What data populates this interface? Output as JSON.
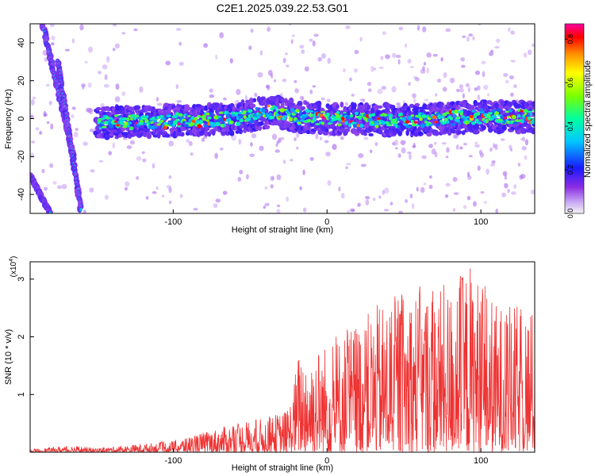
{
  "title": "C2E1.2025.039.22.53.G01",
  "chart_data": [
    {
      "type": "heatmap",
      "name": "spectrogram",
      "xlabel": "Height of straight line (km)",
      "ylabel": "Frequency (Hz)",
      "xlim": [
        -193,
        135
      ],
      "ylim": [
        -50,
        50
      ],
      "xticks": [
        -100,
        0,
        100
      ],
      "xtick_labels": [
        "-100",
        "0",
        "100"
      ],
      "yticks": [
        -40,
        -20,
        0,
        20,
        40
      ],
      "ytick_labels": [
        "-40",
        "-20",
        "0",
        "20",
        "40"
      ],
      "description_of_ridge": "band of high amplitude centred near 0 Hz from about -140 km to 135 km; two diagonal streaks at left",
      "ridge_center_hz": [
        {
          "x": -140,
          "y": -2
        },
        {
          "x": -100,
          "y": -1
        },
        {
          "x": -60,
          "y": 0
        },
        {
          "x": -35,
          "y": 4
        },
        {
          "x": -20,
          "y": 1
        },
        {
          "x": 0,
          "y": 0
        },
        {
          "x": 50,
          "y": -1
        },
        {
          "x": 100,
          "y": 1
        },
        {
          "x": 135,
          "y": 1
        }
      ],
      "diagonal_streaks": [
        {
          "from": {
            "x": -185,
            "y": 50
          },
          "to": {
            "x": -165,
            "y": -20
          }
        },
        {
          "from": {
            "x": -193,
            "y": -30
          },
          "to": {
            "x": -180,
            "y": -50
          }
        },
        {
          "from": {
            "x": -175,
            "y": 30
          },
          "to": {
            "x": -160,
            "y": -48
          }
        }
      ],
      "colorbar": {
        "label": "Normalized spectral amplitude",
        "range": [
          0.0,
          0.87
        ],
        "ticks": [
          "0.0",
          "0.2",
          "0.4",
          "0.6",
          "0.8"
        ],
        "tick_values": [
          0.0,
          0.2,
          0.4,
          0.6,
          0.8
        ]
      }
    },
    {
      "type": "line",
      "name": "snr",
      "xlabel": "Height of straight line (km)",
      "ylabel": "SNR (10 * v/v)",
      "scale_label": "(x10",
      "scale_exponent": "4",
      "scale_close": ")",
      "xlim": [
        -193,
        135
      ],
      "ylim": [
        0,
        3.3
      ],
      "xticks": [
        -100,
        0,
        100
      ],
      "xtick_labels": [
        "-100",
        "0",
        "100"
      ],
      "yticks": [
        1,
        2,
        3
      ],
      "ytick_labels": [
        "1",
        "2",
        "3"
      ],
      "color": "#ee3333",
      "envelope": [
        {
          "x": -193,
          "y": 0.05
        },
        {
          "x": -165,
          "y": 0.12
        },
        {
          "x": -150,
          "y": 0.07
        },
        {
          "x": -130,
          "y": 0.12
        },
        {
          "x": -100,
          "y": 0.2
        },
        {
          "x": -80,
          "y": 0.35
        },
        {
          "x": -60,
          "y": 0.5
        },
        {
          "x": -40,
          "y": 0.6
        },
        {
          "x": -25,
          "y": 0.75
        },
        {
          "x": -18,
          "y": 1.8
        },
        {
          "x": 0,
          "y": 1.9
        },
        {
          "x": 20,
          "y": 2.3
        },
        {
          "x": 40,
          "y": 2.7
        },
        {
          "x": 60,
          "y": 2.9
        },
        {
          "x": 80,
          "y": 2.9
        },
        {
          "x": 93,
          "y": 3.3
        },
        {
          "x": 110,
          "y": 2.6
        },
        {
          "x": 135,
          "y": 2.5
        }
      ]
    }
  ]
}
